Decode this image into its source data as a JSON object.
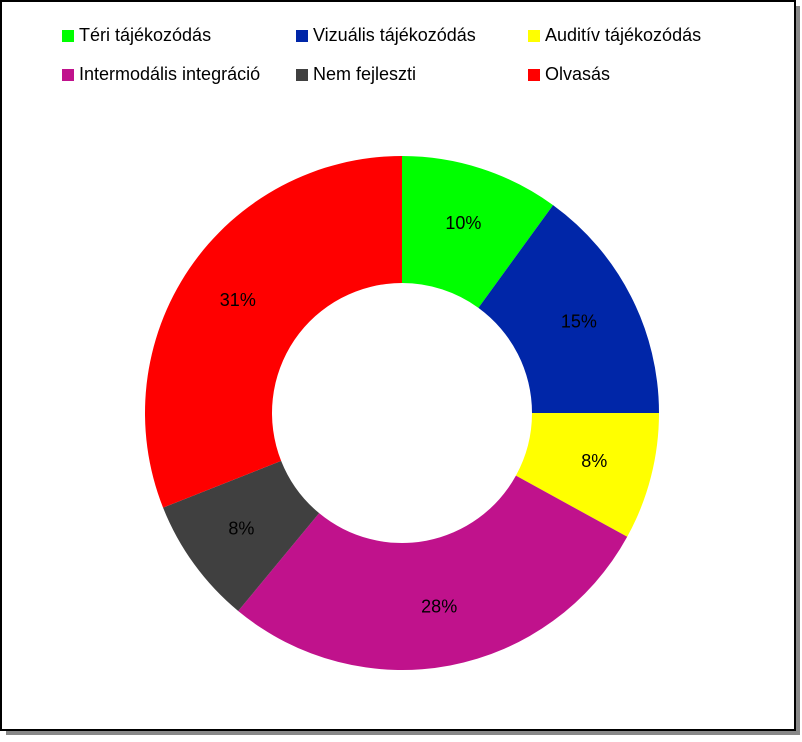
{
  "chart_data": {
    "type": "donut",
    "categories": [
      "Téri tájékozódás",
      "Vizuális tájékozódás",
      "Auditív tájékozódás",
      "Intermodális integráció",
      "Nem fejleszti",
      "Olvasás"
    ],
    "values": [
      10,
      15,
      8,
      28,
      8,
      31
    ],
    "value_labels": [
      "10%",
      "15%",
      "8%",
      "28%",
      "8%",
      "31%"
    ],
    "colors": [
      "#00ff00",
      "#0026a8",
      "#ffff00",
      "#c0128c",
      "#404040",
      "#ff0000"
    ],
    "legend": "top"
  }
}
